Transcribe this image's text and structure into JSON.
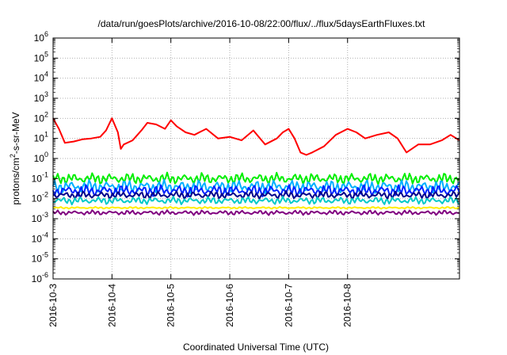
{
  "chart_data": {
    "type": "line",
    "title": "/data/run/goesPlots/archive/2016-10-08/22:00/flux/../flux/5daysEarthFluxes.txt",
    "xlabel": "Coordinated Universal Time (UTC)",
    "ylabel": "protons/cm2-s-sr-MeV",
    "ylabel_parts": {
      "main": "protons/cm",
      "sup": "2",
      "rest": "-s-sr-MeV"
    },
    "yscale": "log",
    "ylim_exp": [
      -6,
      6
    ],
    "ytick_base": "10",
    "yticks_exp": [
      "-6",
      "-5",
      "-4",
      "-3",
      "-2",
      "-1",
      "0",
      "1",
      "2",
      "3",
      "4",
      "5",
      "6"
    ],
    "xlim_days": [
      0,
      6.9
    ],
    "xticks": [
      {
        "label": "2016-10-3",
        "day": 0
      },
      {
        "label": "2016-10-4",
        "day": 1
      },
      {
        "label": "2016-10-5",
        "day": 2
      },
      {
        "label": "2016-10-6",
        "day": 3
      },
      {
        "label": "2016-10-7",
        "day": 4
      },
      {
        "label": "2016-10-8",
        "day": 5
      }
    ],
    "grid": true,
    "series": [
      {
        "color": "#ff0000",
        "x": [
          0.0,
          0.1,
          0.2,
          0.35,
          0.5,
          0.65,
          0.8,
          0.9,
          1.0,
          1.1,
          1.15,
          1.2,
          1.35,
          1.5,
          1.6,
          1.75,
          1.9,
          2.0,
          2.1,
          2.25,
          2.4,
          2.6,
          2.8,
          3.0,
          3.2,
          3.4,
          3.6,
          3.8,
          3.9,
          4.0,
          4.1,
          4.2,
          4.3,
          4.4,
          4.6,
          4.8,
          5.0,
          5.15,
          5.3,
          5.5,
          5.7,
          5.85,
          6.0,
          6.2,
          6.4,
          6.6,
          6.75,
          6.9
        ],
        "y": [
          100,
          30,
          6,
          7,
          9,
          10,
          12,
          25,
          100,
          20,
          3,
          5,
          8,
          25,
          60,
          50,
          30,
          80,
          40,
          20,
          15,
          30,
          10,
          12,
          8,
          25,
          5,
          10,
          20,
          30,
          10,
          2,
          1.5,
          2,
          4,
          15,
          30,
          20,
          10,
          15,
          20,
          10,
          2,
          5,
          5,
          8,
          15,
          8
        ]
      },
      {
        "color": "#00ee00",
        "y": 0.1,
        "spread": 0.12
      },
      {
        "color": "#00b0ff",
        "y": 0.04,
        "spread": 0.14
      },
      {
        "color": "#0022ff",
        "y": 0.025,
        "spread": 0.12
      },
      {
        "color": "#00008b",
        "y": 0.015,
        "spread": 0.08
      },
      {
        "color": "#00c8c8",
        "y": 0.008,
        "spread": 0.08
      },
      {
        "color": "#ffee00",
        "y": 0.0035,
        "spread": 0.02
      },
      {
        "color": "#800080",
        "y": 0.002,
        "spread": 0.05
      }
    ]
  }
}
